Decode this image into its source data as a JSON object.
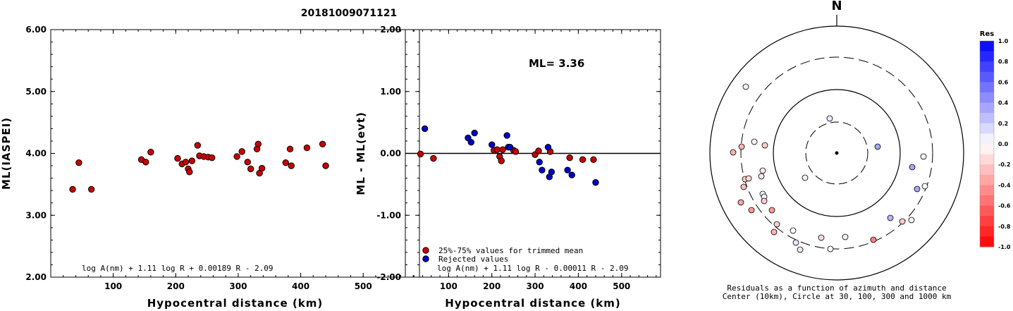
{
  "figure_title": "20181009071121",
  "colors": {
    "accepted": "#cc0000",
    "rejected": "#0000cc",
    "frame": "#000000"
  },
  "chart_data": [
    {
      "id": "left",
      "type": "scatter",
      "xlabel": "Hypocentral distance (km)",
      "ylabel": "ML(IASPEI)",
      "xlim": [
        0,
        590
      ],
      "ylim": [
        2.0,
        6.0
      ],
      "xticks": [
        100,
        200,
        300,
        400,
        500
      ],
      "yticks": [
        2.0,
        3.0,
        4.0,
        5.0,
        6.0
      ],
      "ytick_labels": [
        "2.00",
        "3.00",
        "4.00",
        "5.00",
        "6.00"
      ],
      "formula": "log A(nm) + 1.11 log R + 0.00189 R - 2.09",
      "points": [
        [
          35,
          3.42
        ],
        [
          45,
          3.85
        ],
        [
          65,
          3.42
        ],
        [
          145,
          3.9
        ],
        [
          152,
          3.86
        ],
        [
          160,
          4.02
        ],
        [
          203,
          3.92
        ],
        [
          210,
          3.83
        ],
        [
          216,
          3.86
        ],
        [
          220,
          3.75
        ],
        [
          222,
          3.7
        ],
        [
          226,
          3.88
        ],
        [
          235,
          4.13
        ],
        [
          238,
          3.96
        ],
        [
          245,
          3.95
        ],
        [
          252,
          3.94
        ],
        [
          258,
          3.93
        ],
        [
          298,
          3.95
        ],
        [
          306,
          4.03
        ],
        [
          315,
          3.86
        ],
        [
          320,
          3.75
        ],
        [
          330,
          4.07
        ],
        [
          332,
          4.15
        ],
        [
          334,
          3.68
        ],
        [
          338,
          3.76
        ],
        [
          376,
          3.85
        ],
        [
          383,
          4.07
        ],
        [
          385,
          3.8
        ],
        [
          410,
          4.09
        ],
        [
          435,
          4.15
        ],
        [
          440,
          3.8
        ]
      ]
    },
    {
      "id": "right",
      "type": "scatter",
      "xlabel": "Hypocentral distance (km)",
      "ylabel": "ML - ML(evt)",
      "xlim": [
        0,
        590
      ],
      "ylim": [
        -2.0,
        2.0
      ],
      "xticks": [
        100,
        200,
        300,
        400,
        500
      ],
      "yticks": [
        -2.0,
        -1.0,
        0.0,
        1.0,
        2.0
      ],
      "ytick_labels": [
        "-2.00",
        "-1.00",
        "0.00",
        "1.00",
        "2.00"
      ],
      "annotation": "ML= 3.36",
      "formula": "log A(nm) + 1.11 log R - 0.00011 R - 2.09",
      "legend": [
        "25%-75% values for trimmed mean",
        "Rejected values"
      ],
      "accepted": [
        [
          35,
          -0.01
        ],
        [
          65,
          -0.08
        ],
        [
          205,
          0.05
        ],
        [
          212,
          0.06
        ],
        [
          218,
          -0.05
        ],
        [
          222,
          -0.12
        ],
        [
          225,
          0.06
        ],
        [
          250,
          0.05
        ],
        [
          255,
          0.03
        ],
        [
          300,
          -0.02
        ],
        [
          308,
          0.04
        ],
        [
          335,
          0.03
        ],
        [
          380,
          -0.07
        ],
        [
          410,
          -0.1
        ],
        [
          435,
          -0.1
        ]
      ],
      "rejected": [
        [
          45,
          0.4
        ],
        [
          145,
          0.25
        ],
        [
          152,
          0.18
        ],
        [
          160,
          0.33
        ],
        [
          200,
          0.14
        ],
        [
          235,
          0.29
        ],
        [
          238,
          0.1
        ],
        [
          242,
          0.1
        ],
        [
          310,
          -0.14
        ],
        [
          316,
          -0.27
        ],
        [
          330,
          0.1
        ],
        [
          333,
          -0.38
        ],
        [
          338,
          -0.3
        ],
        [
          375,
          -0.27
        ],
        [
          385,
          -0.35
        ],
        [
          440,
          -0.47
        ]
      ]
    },
    {
      "id": "polar",
      "type": "scatter",
      "north_label": "N",
      "caption_line1": "Residuals as a function of azimuth and distance",
      "caption_line2": "Center (10km), Circle at 30, 100, 300 and 1000 km",
      "colorbar_title": "Res",
      "colorbar_ticks": [
        "1.0",
        "0.8",
        "0.6",
        "0.4",
        "0.2",
        "0.0",
        "-0.2",
        "-0.4",
        "-0.6",
        "-0.8",
        "-1.0"
      ],
      "stations": [
        [
          -129,
          94,
          0.05
        ],
        [
          -10,
          49,
          0.1
        ],
        [
          58,
          9,
          0.35
        ],
        [
          -147,
          1,
          -0.3
        ],
        [
          -130,
          -37,
          -0.2
        ],
        [
          -125,
          -36,
          -0.15
        ],
        [
          -132,
          -48,
          -0.25
        ],
        [
          -136,
          -70,
          -0.35
        ],
        [
          -107,
          -33,
          -0.1
        ],
        [
          -105,
          -58,
          0.0
        ],
        [
          -103,
          -62,
          0.05
        ],
        [
          -103,
          -68,
          -0.2
        ],
        [
          -121,
          -81,
          -0.4
        ],
        [
          -92,
          -81,
          -0.4
        ],
        [
          -85,
          -101,
          -0.2
        ],
        [
          -89,
          -112,
          -0.3
        ],
        [
          -62,
          -110,
          0.0
        ],
        [
          -58,
          -127,
          0.1
        ],
        [
          -52,
          -137,
          -0.1
        ],
        [
          -22,
          -120,
          -0.15
        ],
        [
          12,
          -119,
          0.05
        ],
        [
          -9,
          -136,
          0.0
        ],
        [
          52,
          -123,
          -0.5
        ],
        [
          106,
          -95,
          0.05
        ],
        [
          76,
          -92,
          0.3
        ],
        [
          93,
          -97,
          -0.2
        ],
        [
          114,
          -51,
          0.35
        ],
        [
          125,
          -47,
          0.0
        ],
        [
          107,
          -20,
          0.35
        ],
        [
          123,
          -5,
          0.05
        ],
        [
          -105,
          -25,
          -0.1
        ],
        [
          -45,
          -35,
          -0.05
        ],
        [
          -117,
          16,
          -0.05
        ],
        [
          -135,
          9,
          -0.3
        ],
        [
          -102,
          11,
          -0.2
        ]
      ]
    }
  ]
}
